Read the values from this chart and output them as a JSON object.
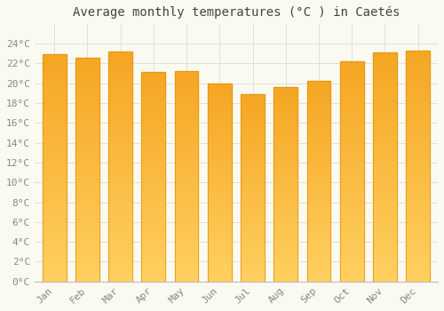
{
  "title": "Average monthly temperatures (°C ) in Caetés",
  "months": [
    "Jan",
    "Feb",
    "Mar",
    "Apr",
    "May",
    "Jun",
    "Jul",
    "Aug",
    "Sep",
    "Oct",
    "Nov",
    "Dec"
  ],
  "values": [
    22.9,
    22.6,
    23.2,
    21.1,
    21.2,
    20.0,
    18.9,
    19.6,
    20.2,
    22.2,
    23.1,
    23.3
  ],
  "bar_color_top": "#F5A623",
  "bar_color_bottom": "#FFD060",
  "background_color": "#FAFAF0",
  "grid_color": "#E0E0E0",
  "ylim": [
    0,
    26
  ],
  "yticks": [
    0,
    2,
    4,
    6,
    8,
    10,
    12,
    14,
    16,
    18,
    20,
    22,
    24
  ],
  "title_fontsize": 10,
  "tick_fontsize": 8,
  "title_color": "#444444",
  "tick_color": "#888888",
  "figsize": [
    5.0,
    3.5
  ],
  "dpi": 100
}
